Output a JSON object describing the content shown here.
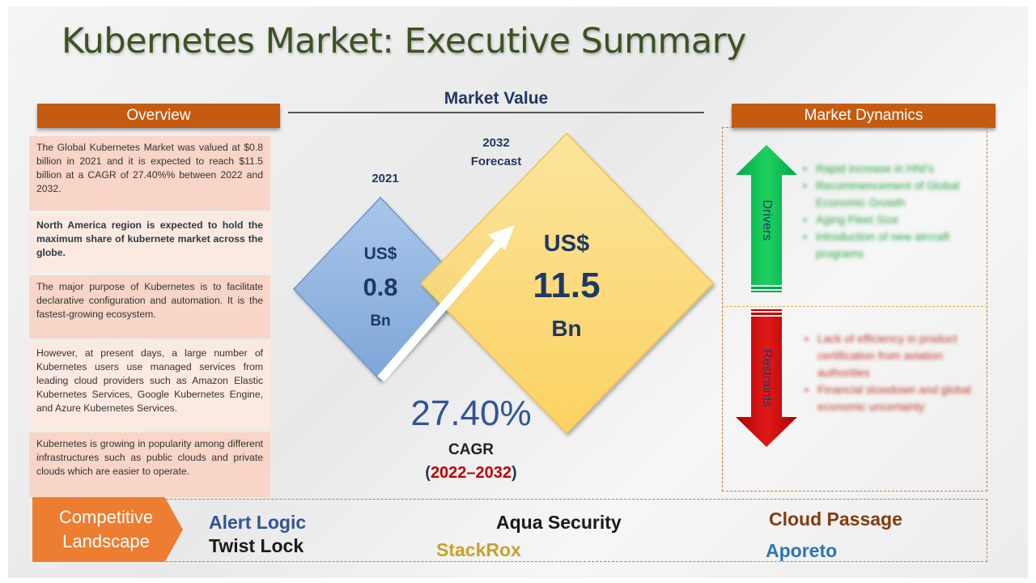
{
  "title": "Kubernetes Market: Executive Summary",
  "overview": {
    "header": "Overview",
    "paragraphs": [
      "The Global Kubernetes Market was valued at $0.8 billion in 2021 and it is expected to reach $11.5 billion at a CAGR of 27.40%% between 2022 and 2032.",
      "North America region is expected to hold the maximum share of kubernete market across the globe.",
      "The major purpose of Kubernetes is to facilitate declarative configuration and automation. It is the fastest-growing ecosystem.",
      "However, at present days, a large number of Kubernetes users use managed services from leading cloud providers such as Amazon Elastic Kubernetes Services, Google Kubernetes Engine, and Azure Kubernetes Services.",
      "Kubernetes is growing in popularity among different infrastructures such as public clouds and private clouds which are easier to operate."
    ]
  },
  "market_value": {
    "title": "Market Value",
    "year_2021": "2021",
    "year_2032": "2032",
    "forecast": "Forecast",
    "v2021": {
      "currency": "US$",
      "value": "0.8",
      "unit": "Bn"
    },
    "v2032": {
      "currency": "US$",
      "value": "11.5",
      "unit": "Bn"
    },
    "cagr_value": "27.40%",
    "cagr_label": "CAGR",
    "period_open": "(",
    "period": "2022–2032",
    "period_close": ")"
  },
  "dynamics": {
    "header": "Market Dynamics",
    "drivers_label": "Drivers",
    "restraints_label": "Restraints",
    "drivers": [
      "Rapid increase in HNI's",
      "Recommencement of Global Economic Growth",
      "Aging Fleet Size",
      "Introduction of new aircraft programs"
    ],
    "restraints": [
      "Lack of efficiency in product certification from aviation authorities",
      "Financial slowdown and global economic uncertainty"
    ]
  },
  "competitive": {
    "label_line1": "Competitive",
    "label_line2": "Landscape",
    "companies": [
      "Alert Logic",
      "Twist Lock",
      "Aqua Security",
      "StackRox",
      "Cloud Passage",
      "Aporeto"
    ]
  },
  "colors": {
    "title": "#3b5323",
    "header": "#c55a11",
    "blue_diamond": "#8eb4e3",
    "yellow_diamond": "#ffd966",
    "driver_arrow": "#00b050",
    "restraint_arrow": "#c00000"
  }
}
